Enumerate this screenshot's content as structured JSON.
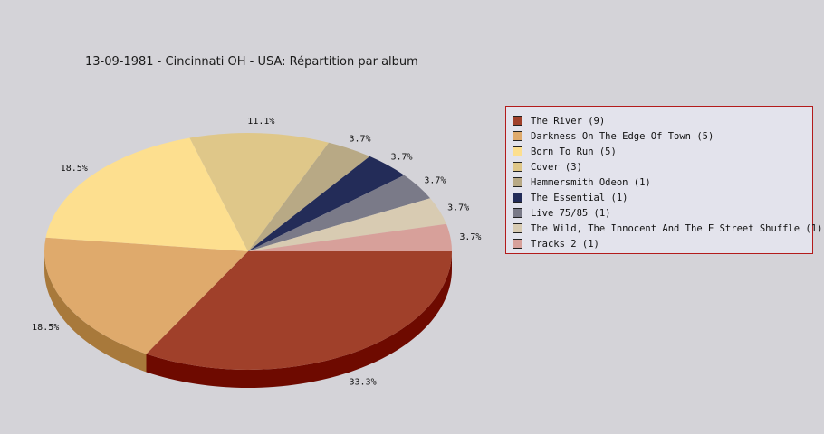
{
  "page": {
    "background": "#d4d3d8"
  },
  "chart_data": {
    "type": "pie",
    "title": "13-09-1981 - Cincinnati OH - USA:  Répartition par album",
    "style": "3d",
    "slices": [
      {
        "label": "The River (9)",
        "value": 9,
        "percent_label": "33.3%",
        "color": "#a0402a",
        "side_color": "#6e0a00"
      },
      {
        "label": "Darkness On The Edge Of Town (5)",
        "value": 5,
        "percent_label": "18.5%",
        "color": "#dfaa6c",
        "side_color": "#a8793b"
      },
      {
        "label": "Born To Run (5)",
        "value": 5,
        "percent_label": "18.5%",
        "color": "#fddf8f",
        "side_color": "#c9a95c"
      },
      {
        "label": "Cover (3)",
        "value": 3,
        "percent_label": "11.1%",
        "color": "#dfc789",
        "side_color": "#a99556"
      },
      {
        "label": "Hammersmith Odeon  (1)",
        "value": 1,
        "percent_label": "3.7%",
        "color": "#b8a985",
        "side_color": "#857756"
      },
      {
        "label": "The Essential (1)",
        "value": 1,
        "percent_label": "3.7%",
        "color": "#232c58",
        "side_color": "#10173a"
      },
      {
        "label": "Live 75/85 (1)",
        "value": 1,
        "percent_label": "3.7%",
        "color": "#7a7a88",
        "side_color": "#4f4f5c"
      },
      {
        "label": "The Wild, The Innocent And The E Street Shuffle (1)",
        "value": 1,
        "percent_label": "3.7%",
        "color": "#d8cbb2",
        "side_color": "#a39780"
      },
      {
        "label": "Tracks 2 (1)",
        "value": 1,
        "percent_label": "3.7%",
        "color": "#d7a09a",
        "side_color": "#a26e68"
      }
    ],
    "legend_placement": "right",
    "legend_border_color": "#b31b1b"
  }
}
